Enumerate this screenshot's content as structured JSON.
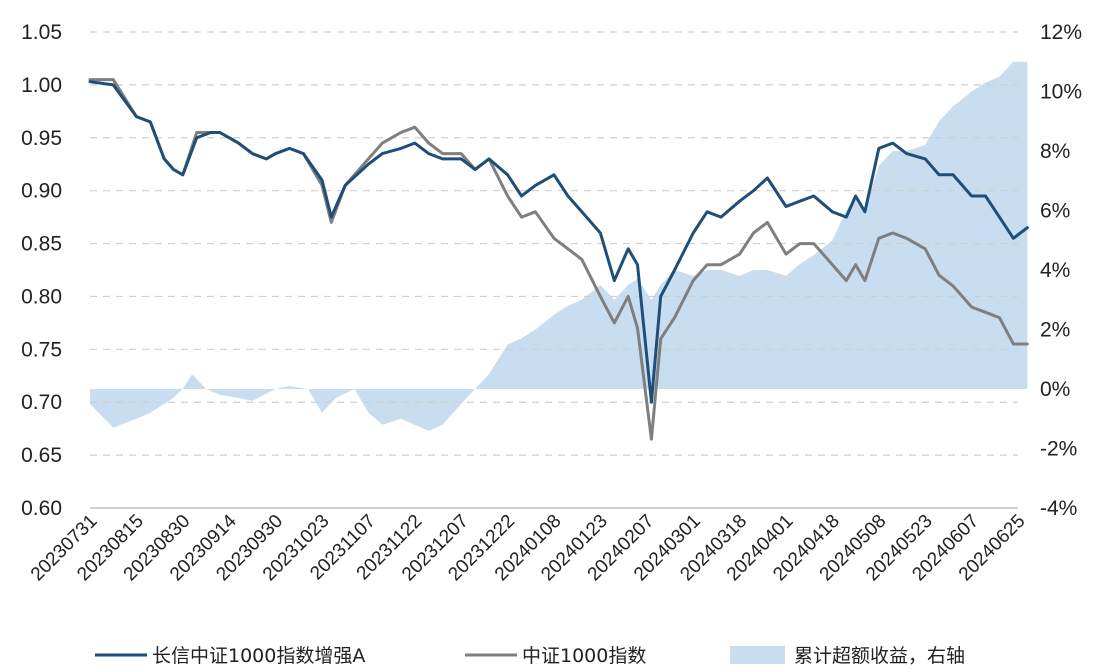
{
  "chart_data": {
    "type": "line",
    "title": "",
    "xlabel": "",
    "ylabel": "",
    "categories": [
      "20230731",
      "20230815",
      "20230830",
      "20230914",
      "20230930",
      "20231023",
      "20231107",
      "20231122",
      "20231207",
      "20231222",
      "20240108",
      "20240123",
      "20240207",
      "20240301",
      "20240318",
      "20240401",
      "20240418",
      "20240508",
      "20240523",
      "20240607",
      "20240625"
    ],
    "ylim": [
      0.6,
      1.05
    ],
    "y_ticks": [
      "1.05",
      "1.00",
      "0.95",
      "0.90",
      "0.85",
      "0.80",
      "0.75",
      "0.70",
      "0.65",
      "0.60"
    ],
    "y2lim": [
      -0.04,
      0.12
    ],
    "y2_ticks": [
      "12%",
      "10%",
      "8%",
      "6%",
      "4%",
      "2%",
      "0%",
      "-2%",
      "-4%"
    ],
    "grid": true,
    "legend_position": "bottom",
    "series": [
      {
        "name": "长信中证1000指数增强A",
        "axis": "left",
        "kind": "line",
        "color": "#1f4e79",
        "points": [
          [
            0,
            1.003
          ],
          [
            0.5,
            1.0
          ],
          [
            1,
            0.97
          ],
          [
            1.3,
            0.965
          ],
          [
            1.6,
            0.93
          ],
          [
            1.8,
            0.92
          ],
          [
            2,
            0.915
          ],
          [
            2.3,
            0.95
          ],
          [
            2.6,
            0.955
          ],
          [
            2.8,
            0.955
          ],
          [
            3.2,
            0.945
          ],
          [
            3.5,
            0.935
          ],
          [
            3.8,
            0.93
          ],
          [
            4,
            0.935
          ],
          [
            4.3,
            0.94
          ],
          [
            4.6,
            0.935
          ],
          [
            5,
            0.91
          ],
          [
            5.2,
            0.875
          ],
          [
            5.5,
            0.905
          ],
          [
            6,
            0.925
          ],
          [
            6.3,
            0.935
          ],
          [
            6.7,
            0.94
          ],
          [
            7,
            0.945
          ],
          [
            7.3,
            0.935
          ],
          [
            7.6,
            0.93
          ],
          [
            8,
            0.93
          ],
          [
            8.3,
            0.92
          ],
          [
            8.6,
            0.93
          ],
          [
            9,
            0.915
          ],
          [
            9.3,
            0.895
          ],
          [
            9.6,
            0.905
          ],
          [
            10,
            0.915
          ],
          [
            10.3,
            0.895
          ],
          [
            10.6,
            0.88
          ],
          [
            11,
            0.86
          ],
          [
            11.3,
            0.815
          ],
          [
            11.6,
            0.845
          ],
          [
            11.8,
            0.83
          ],
          [
            12.1,
            0.7
          ],
          [
            12.3,
            0.8
          ],
          [
            12.6,
            0.825
          ],
          [
            13,
            0.86
          ],
          [
            13.3,
            0.88
          ],
          [
            13.6,
            0.875
          ],
          [
            14,
            0.89
          ],
          [
            14.3,
            0.9
          ],
          [
            14.6,
            0.912
          ],
          [
            15,
            0.885
          ],
          [
            15.3,
            0.89
          ],
          [
            15.6,
            0.895
          ],
          [
            16,
            0.88
          ],
          [
            16.3,
            0.875
          ],
          [
            16.5,
            0.895
          ],
          [
            16.7,
            0.88
          ],
          [
            17,
            0.94
          ],
          [
            17.3,
            0.945
          ],
          [
            17.6,
            0.935
          ],
          [
            18,
            0.93
          ],
          [
            18.3,
            0.915
          ],
          [
            18.6,
            0.915
          ],
          [
            19,
            0.895
          ],
          [
            19.3,
            0.895
          ],
          [
            19.6,
            0.875
          ],
          [
            19.9,
            0.855
          ],
          [
            20.2,
            0.865
          ]
        ]
      },
      {
        "name": "中证1000指数",
        "axis": "left",
        "kind": "line",
        "color": "#7f7f7f",
        "points": [
          [
            0,
            1.005
          ],
          [
            0.5,
            1.005
          ],
          [
            1,
            0.97
          ],
          [
            1.3,
            0.965
          ],
          [
            1.6,
            0.93
          ],
          [
            1.8,
            0.92
          ],
          [
            2,
            0.915
          ],
          [
            2.3,
            0.955
          ],
          [
            2.6,
            0.955
          ],
          [
            2.8,
            0.955
          ],
          [
            3.2,
            0.945
          ],
          [
            3.5,
            0.935
          ],
          [
            3.8,
            0.93
          ],
          [
            4,
            0.935
          ],
          [
            4.3,
            0.94
          ],
          [
            4.6,
            0.935
          ],
          [
            5,
            0.905
          ],
          [
            5.2,
            0.87
          ],
          [
            5.5,
            0.905
          ],
          [
            6,
            0.93
          ],
          [
            6.3,
            0.945
          ],
          [
            6.7,
            0.955
          ],
          [
            7,
            0.96
          ],
          [
            7.3,
            0.945
          ],
          [
            7.6,
            0.935
          ],
          [
            8,
            0.935
          ],
          [
            8.3,
            0.92
          ],
          [
            8.6,
            0.93
          ],
          [
            9,
            0.895
          ],
          [
            9.3,
            0.875
          ],
          [
            9.6,
            0.88
          ],
          [
            10,
            0.855
          ],
          [
            10.3,
            0.845
          ],
          [
            10.6,
            0.835
          ],
          [
            11,
            0.8
          ],
          [
            11.3,
            0.775
          ],
          [
            11.6,
            0.8
          ],
          [
            11.8,
            0.77
          ],
          [
            12.1,
            0.665
          ],
          [
            12.3,
            0.76
          ],
          [
            12.6,
            0.78
          ],
          [
            13,
            0.815
          ],
          [
            13.3,
            0.83
          ],
          [
            13.6,
            0.83
          ],
          [
            14,
            0.84
          ],
          [
            14.3,
            0.86
          ],
          [
            14.6,
            0.87
          ],
          [
            15,
            0.84
          ],
          [
            15.3,
            0.85
          ],
          [
            15.6,
            0.85
          ],
          [
            16,
            0.83
          ],
          [
            16.3,
            0.815
          ],
          [
            16.5,
            0.83
          ],
          [
            16.7,
            0.815
          ],
          [
            17,
            0.855
          ],
          [
            17.3,
            0.86
          ],
          [
            17.6,
            0.855
          ],
          [
            18,
            0.845
          ],
          [
            18.3,
            0.82
          ],
          [
            18.6,
            0.81
          ],
          [
            19,
            0.79
          ],
          [
            19.3,
            0.785
          ],
          [
            19.6,
            0.78
          ],
          [
            19.9,
            0.755
          ],
          [
            20.2,
            0.755
          ]
        ]
      },
      {
        "name": "累计超额收益，右轴",
        "axis": "right",
        "kind": "area",
        "color": "#c9ddf0",
        "points": [
          [
            0,
            -0.005
          ],
          [
            0.5,
            -0.013
          ],
          [
            1,
            -0.01
          ],
          [
            1.3,
            -0.008
          ],
          [
            1.6,
            -0.005
          ],
          [
            1.8,
            -0.003
          ],
          [
            2,
            0.0
          ],
          [
            2.2,
            0.005
          ],
          [
            2.5,
            0.0
          ],
          [
            2.8,
            -0.002
          ],
          [
            3.2,
            -0.003
          ],
          [
            3.5,
            -0.004
          ],
          [
            4,
            0.0
          ],
          [
            4.3,
            0.001
          ],
          [
            4.7,
            0.0
          ],
          [
            5,
            -0.008
          ],
          [
            5.3,
            -0.003
          ],
          [
            5.7,
            0.0
          ],
          [
            6,
            -0.008
          ],
          [
            6.3,
            -0.012
          ],
          [
            6.7,
            -0.01
          ],
          [
            7,
            -0.012
          ],
          [
            7.3,
            -0.014
          ],
          [
            7.6,
            -0.012
          ],
          [
            8,
            -0.005
          ],
          [
            8.3,
            0.0
          ],
          [
            8.6,
            0.005
          ],
          [
            9,
            0.015
          ],
          [
            9.3,
            0.017
          ],
          [
            9.6,
            0.02
          ],
          [
            10,
            0.025
          ],
          [
            10.3,
            0.028
          ],
          [
            10.6,
            0.03
          ],
          [
            11,
            0.035
          ],
          [
            11.3,
            0.03
          ],
          [
            11.6,
            0.035
          ],
          [
            11.8,
            0.037
          ],
          [
            12.1,
            0.03
          ],
          [
            12.3,
            0.035
          ],
          [
            12.6,
            0.04
          ],
          [
            13,
            0.038
          ],
          [
            13.3,
            0.04
          ],
          [
            13.6,
            0.04
          ],
          [
            14,
            0.038
          ],
          [
            14.3,
            0.04
          ],
          [
            14.6,
            0.04
          ],
          [
            15,
            0.038
          ],
          [
            15.3,
            0.042
          ],
          [
            15.6,
            0.045
          ],
          [
            16,
            0.05
          ],
          [
            16.3,
            0.06
          ],
          [
            16.5,
            0.065
          ],
          [
            16.7,
            0.06
          ],
          [
            17,
            0.075
          ],
          [
            17.3,
            0.08
          ],
          [
            17.6,
            0.08
          ],
          [
            18,
            0.082
          ],
          [
            18.3,
            0.09
          ],
          [
            18.6,
            0.095
          ],
          [
            19,
            0.1
          ],
          [
            19.3,
            0.103
          ],
          [
            19.6,
            0.105
          ],
          [
            19.9,
            0.11
          ],
          [
            20.2,
            0.11
          ]
        ]
      }
    ]
  }
}
